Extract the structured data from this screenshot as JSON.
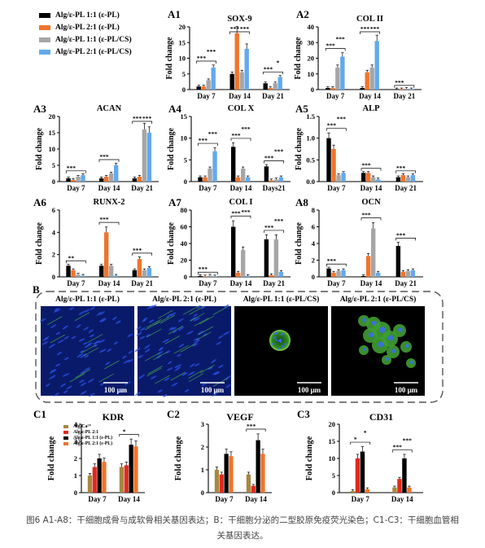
{
  "legend_a": [
    {
      "label": "Alg/ε-PL 1:1 (ε-PL)",
      "color": "#000000"
    },
    {
      "label": "Alg/ε-PL 2:1 (ε-PL)",
      "color": "#f0742c"
    },
    {
      "label": "Alg/ε-PL 1:1 (ε-PL/CS)",
      "color": "#a6a6a6"
    },
    {
      "label": "Alg/ε-PL 2:1 (ε-PL/CS)",
      "color": "#63a9ec"
    }
  ],
  "legend_c": [
    {
      "label": "Alg/Ca²⁺",
      "color": "#a8873e"
    },
    {
      "label": "Alg/ε-PL 2:1",
      "color": "#e02a1e"
    },
    {
      "label": "Alg/ε-PL 1:1 (ε-PL)",
      "color": "#000000"
    },
    {
      "label": "Alg/ε-PL 2:1 (ε-PL)",
      "color": "#f0742c"
    }
  ],
  "y_axis_label": "Fold change",
  "panel_b": {
    "label": "B",
    "images": [
      {
        "title": "Alg/ε-PL 1:1 (ε-PL)",
        "scale_bar": "100 μm"
      },
      {
        "title": "Alg/ε-PL 2:1 (ε-PL)",
        "scale_bar": "100 μm"
      },
      {
        "title": "Alg/ε-PL 1:1 (ε-PL/CS)",
        "scale_bar": "100 μm"
      },
      {
        "title": "Alg/ε-PL 2:1 (ε-PL/CS)",
        "scale_bar": "100 μm"
      }
    ]
  },
  "caption": {
    "line1": "图6 A1-A8：干细胞成骨与成软骨相关基因表达；B：干细胞分泌的二型胶原免疫荧光染色；C1-C3：干细胞血管相",
    "line2": "关基因表达。"
  },
  "chart_data": [
    {
      "id": "A1",
      "type": "bar",
      "title": "SOX-9",
      "ylabel": "Fold change",
      "ylim": [
        0,
        20
      ],
      "yticks": [
        0,
        5,
        10,
        15,
        20
      ],
      "categories": [
        "Day 7",
        "Day 14",
        "Day 21"
      ],
      "series": [
        {
          "name": "Alg/ε-PL 1:1 (ε-PL)",
          "values": [
            1.0,
            5.0,
            2.0
          ]
        },
        {
          "name": "Alg/ε-PL 2:1 (ε-PL)",
          "values": [
            1.0,
            18.0,
            0.5
          ]
        },
        {
          "name": "Alg/ε-PL 1:1 (ε-PL/CS)",
          "values": [
            3.0,
            5.5,
            2.0
          ]
        },
        {
          "name": "Alg/ε-PL 2:1 (ε-PL/CS)",
          "values": [
            7.0,
            13.0,
            4.0
          ]
        }
      ],
      "annotations": [
        "***",
        "***",
        "***",
        "***",
        "***",
        "*"
      ]
    },
    {
      "id": "A2",
      "type": "bar",
      "title": "COL II",
      "ylabel": "Fold change",
      "ylim": [
        0,
        40
      ],
      "yticks": [
        0,
        10,
        20,
        30,
        40
      ],
      "categories": [
        "Day 7",
        "Day 14",
        "Day 21"
      ],
      "series": [
        {
          "name": "Alg/ε-PL 1:1 (ε-PL)",
          "values": [
            1.0,
            1.0,
            0.2
          ]
        },
        {
          "name": "Alg/ε-PL 2:1 (ε-PL)",
          "values": [
            1.0,
            11.0,
            0.2
          ]
        },
        {
          "name": "Alg/ε-PL 1:1 (ε-PL/CS)",
          "values": [
            14.0,
            14.0,
            0.5
          ]
        },
        {
          "name": "Alg/ε-PL 2:1 (ε-PL/CS)",
          "values": [
            21.0,
            31.0,
            0.2
          ]
        }
      ],
      "annotations": [
        "***",
        "***",
        "***",
        "***",
        "***"
      ]
    },
    {
      "id": "A3",
      "type": "bar",
      "title": "ACAN",
      "ylabel": "Fold change",
      "ylim": [
        0,
        20
      ],
      "yticks": [
        0,
        5,
        10,
        15,
        20
      ],
      "categories": [
        "Day 7",
        "Day 14",
        "Day 21"
      ],
      "series": [
        {
          "name": "Alg/ε-PL 1:1 (ε-PL)",
          "values": [
            1.0,
            1.0,
            1.0
          ]
        },
        {
          "name": "Alg/ε-PL 2:1 (ε-PL)",
          "values": [
            0.5,
            1.5,
            1.5
          ]
        },
        {
          "name": "Alg/ε-PL 1:1 (ε-PL/CS)",
          "values": [
            1.5,
            2.5,
            16.0
          ]
        },
        {
          "name": "Alg/ε-PL 2:1 (ε-PL/CS)",
          "values": [
            2.0,
            5.0,
            15.0
          ]
        }
      ],
      "annotations": [
        "***",
        "***",
        "***",
        "***"
      ]
    },
    {
      "id": "A4",
      "type": "bar",
      "title": "COL X",
      "ylabel": "Fold change",
      "ylim": [
        0,
        15
      ],
      "yticks": [
        0,
        5,
        10,
        15
      ],
      "categories": [
        "Day 7",
        "Day 14",
        "Days21"
      ],
      "series": [
        {
          "name": "Alg/ε-PL 1:1 (ε-PL)",
          "values": [
            1.0,
            8.0,
            3.5
          ]
        },
        {
          "name": "Alg/ε-PL 2:1 (ε-PL)",
          "values": [
            1.0,
            1.0,
            0.3
          ]
        },
        {
          "name": "Alg/ε-PL 1:1 (ε-PL/CS)",
          "values": [
            3.0,
            3.0,
            0.5
          ]
        },
        {
          "name": "Alg/ε-PL 2:1 (ε-PL/CS)",
          "values": [
            7.0,
            1.0,
            1.0
          ]
        }
      ],
      "annotations": [
        "***",
        "***",
        "***",
        "***",
        "***",
        "***"
      ]
    },
    {
      "id": "A5",
      "type": "bar",
      "title": "ALP",
      "ylabel": "Fold change",
      "ylim": [
        0,
        1.5
      ],
      "yticks": [
        0.0,
        0.5,
        1.0,
        1.5
      ],
      "categories": [
        "Day 7",
        "Day 14",
        "Day 21"
      ],
      "series": [
        {
          "name": "Alg/ε-PL 1:1 (ε-PL)",
          "values": [
            1.0,
            0.2,
            0.1
          ]
        },
        {
          "name": "Alg/ε-PL 2:1 (ε-PL)",
          "values": [
            0.75,
            0.2,
            0.15
          ]
        },
        {
          "name": "Alg/ε-PL 1:1 (ε-PL/CS)",
          "values": [
            0.15,
            0.1,
            0.1
          ]
        },
        {
          "name": "Alg/ε-PL 2:1 (ε-PL/CS)",
          "values": [
            0.2,
            0.05,
            0.15
          ]
        }
      ],
      "annotations": [
        "***",
        "***",
        "***",
        "***"
      ]
    },
    {
      "id": "A6",
      "type": "bar",
      "title": "RUNX-2",
      "ylabel": "Fold change",
      "ylim": [
        0,
        6
      ],
      "yticks": [
        0,
        2,
        4,
        6
      ],
      "categories": [
        "Day 7",
        "Day 14",
        "Day 21"
      ],
      "series": [
        {
          "name": "Alg/ε-PL 1:1 (ε-PL)",
          "values": [
            1.0,
            1.0,
            0.6
          ]
        },
        {
          "name": "Alg/ε-PL 2:1 (ε-PL)",
          "values": [
            0.6,
            4.0,
            1.6
          ]
        },
        {
          "name": "Alg/ε-PL 1:1 (ε-PL/CS)",
          "values": [
            0.2,
            1.0,
            0.6
          ]
        },
        {
          "name": "Alg/ε-PL 2:1 (ε-PL/CS)",
          "values": [
            0.1,
            0.1,
            0.8
          ]
        }
      ],
      "annotations": [
        "***",
        "***",
        "**"
      ]
    },
    {
      "id": "A7",
      "type": "bar",
      "title": "COL I",
      "ylabel": "Fold change",
      "ylim": [
        0,
        80
      ],
      "yticks": [
        0,
        20,
        40,
        60,
        80
      ],
      "categories": [
        "Day 7",
        "Day 14",
        "Day 21"
      ],
      "series": [
        {
          "name": "Alg/ε-PL 1:1 (ε-PL)",
          "values": [
            1.0,
            60.0,
            45.0
          ]
        },
        {
          "name": "Alg/ε-PL 2:1 (ε-PL)",
          "values": [
            0.5,
            5.0,
            2.0
          ]
        },
        {
          "name": "Alg/ε-PL 1:1 (ε-PL/CS)",
          "values": [
            1.5,
            32.0,
            45.0
          ]
        },
        {
          "name": "Alg/ε-PL 2:1 (ε-PL/CS)",
          "values": [
            0.5,
            1.0,
            6.0
          ]
        }
      ],
      "annotations": [
        "***",
        "***",
        "***",
        "***",
        "***"
      ]
    },
    {
      "id": "A8",
      "type": "bar",
      "title": "OCN",
      "ylabel": "Fold change",
      "ylim": [
        0,
        8
      ],
      "yticks": [
        0,
        2,
        4,
        6,
        8
      ],
      "categories": [
        "Day 7",
        "Day 14",
        "Day 21"
      ],
      "series": [
        {
          "name": "Alg/ε-PL 1:1 (ε-PL)",
          "values": [
            1.0,
            0.1,
            3.7
          ]
        },
        {
          "name": "Alg/ε-PL 2:1 (ε-PL)",
          "values": [
            0.5,
            2.5,
            0.6
          ]
        },
        {
          "name": "Alg/ε-PL 1:1 (ε-PL/CS)",
          "values": [
            0.7,
            5.8,
            0.7
          ]
        },
        {
          "name": "Alg/ε-PL 2:1 (ε-PL/CS)",
          "values": [
            0.8,
            0.5,
            0.8
          ]
        }
      ],
      "annotations": [
        "***",
        "***",
        "***"
      ]
    },
    {
      "id": "C1",
      "type": "bar",
      "title": "KDR",
      "ylabel": "Fold change",
      "ylim": [
        0,
        4
      ],
      "yticks": [
        0,
        1,
        2,
        3,
        4
      ],
      "categories": [
        "Day 7",
        "Day 14"
      ],
      "series": [
        {
          "name": "Alg/Ca²⁺",
          "values": [
            1.0,
            1.5
          ]
        },
        {
          "name": "Alg/ε-PL 2:1",
          "values": [
            1.5,
            1.6
          ]
        },
        {
          "name": "Alg/ε-PL 1:1 (ε-PL)",
          "values": [
            2.0,
            2.8
          ]
        },
        {
          "name": "Alg/ε-PL 2:1 (ε-PL)",
          "values": [
            1.8,
            2.7
          ]
        }
      ],
      "annotations": [
        "*"
      ]
    },
    {
      "id": "C2",
      "type": "bar",
      "title": "VEGF",
      "ylabel": "Fold change",
      "ylim": [
        0,
        3
      ],
      "yticks": [
        0,
        1,
        2,
        3
      ],
      "categories": [
        "Day 7",
        "Day 14"
      ],
      "series": [
        {
          "name": "Alg/Ca²⁺",
          "values": [
            1.0,
            0.8
          ]
        },
        {
          "name": "Alg/ε-PL 2:1",
          "values": [
            0.8,
            0.3
          ]
        },
        {
          "name": "Alg/ε-PL 1:1 (ε-PL)",
          "values": [
            1.7,
            2.3
          ]
        },
        {
          "name": "Alg/ε-PL 2:1 (ε-PL)",
          "values": [
            1.6,
            1.7
          ]
        }
      ],
      "annotations": [
        "***"
      ]
    },
    {
      "id": "C3",
      "type": "bar",
      "title": "CD31",
      "ylabel": "Fold change",
      "ylim": [
        0,
        20
      ],
      "yticks": [
        0,
        5,
        10,
        15,
        20
      ],
      "categories": [
        "Day 7",
        "Day 14"
      ],
      "series": [
        {
          "name": "Alg/Ca²⁺",
          "values": [
            0.5,
            1.5
          ]
        },
        {
          "name": "Alg/ε-PL 2:1",
          "values": [
            10.0,
            4.0
          ]
        },
        {
          "name": "Alg/ε-PL 1:1 (ε-PL)",
          "values": [
            12.0,
            10.0
          ]
        },
        {
          "name": "Alg/ε-PL 2:1 (ε-PL)",
          "values": [
            1.0,
            1.5
          ]
        }
      ],
      "annotations": [
        "*",
        "***",
        "*",
        "***"
      ]
    }
  ]
}
